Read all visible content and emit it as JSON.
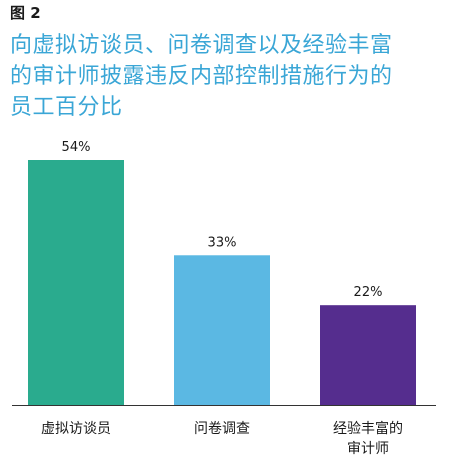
{
  "figure_label": "图 2",
  "title_lines": [
    "向虚拟访谈员、问卷调查以及经验丰富",
    "的审计师披露违反内部控制措施行为的",
    "员工百分比"
  ],
  "colors": {
    "title": "#3aa6d6",
    "bar1": "#2aab8e",
    "bar2": "#5bb8e3",
    "bar3": "#552d8e",
    "axis": "#333333"
  },
  "chart_data": {
    "type": "bar",
    "title": "向虚拟访谈员、问卷调查以及经验丰富的审计师披露违反内部控制措施行为的员工百分比",
    "categories": [
      [
        "虚拟访谈员"
      ],
      [
        "问卷调查"
      ],
      [
        "经验丰富的",
        "审计师"
      ]
    ],
    "values": [
      54,
      33,
      22
    ],
    "value_labels": [
      "54%",
      "33%",
      "22%"
    ],
    "bar_colors": [
      "#2aab8e",
      "#5bb8e3",
      "#552d8e"
    ],
    "ylim": [
      0,
      54
    ],
    "xlabel": "",
    "ylabel": "",
    "grid": false,
    "legend": "none"
  }
}
